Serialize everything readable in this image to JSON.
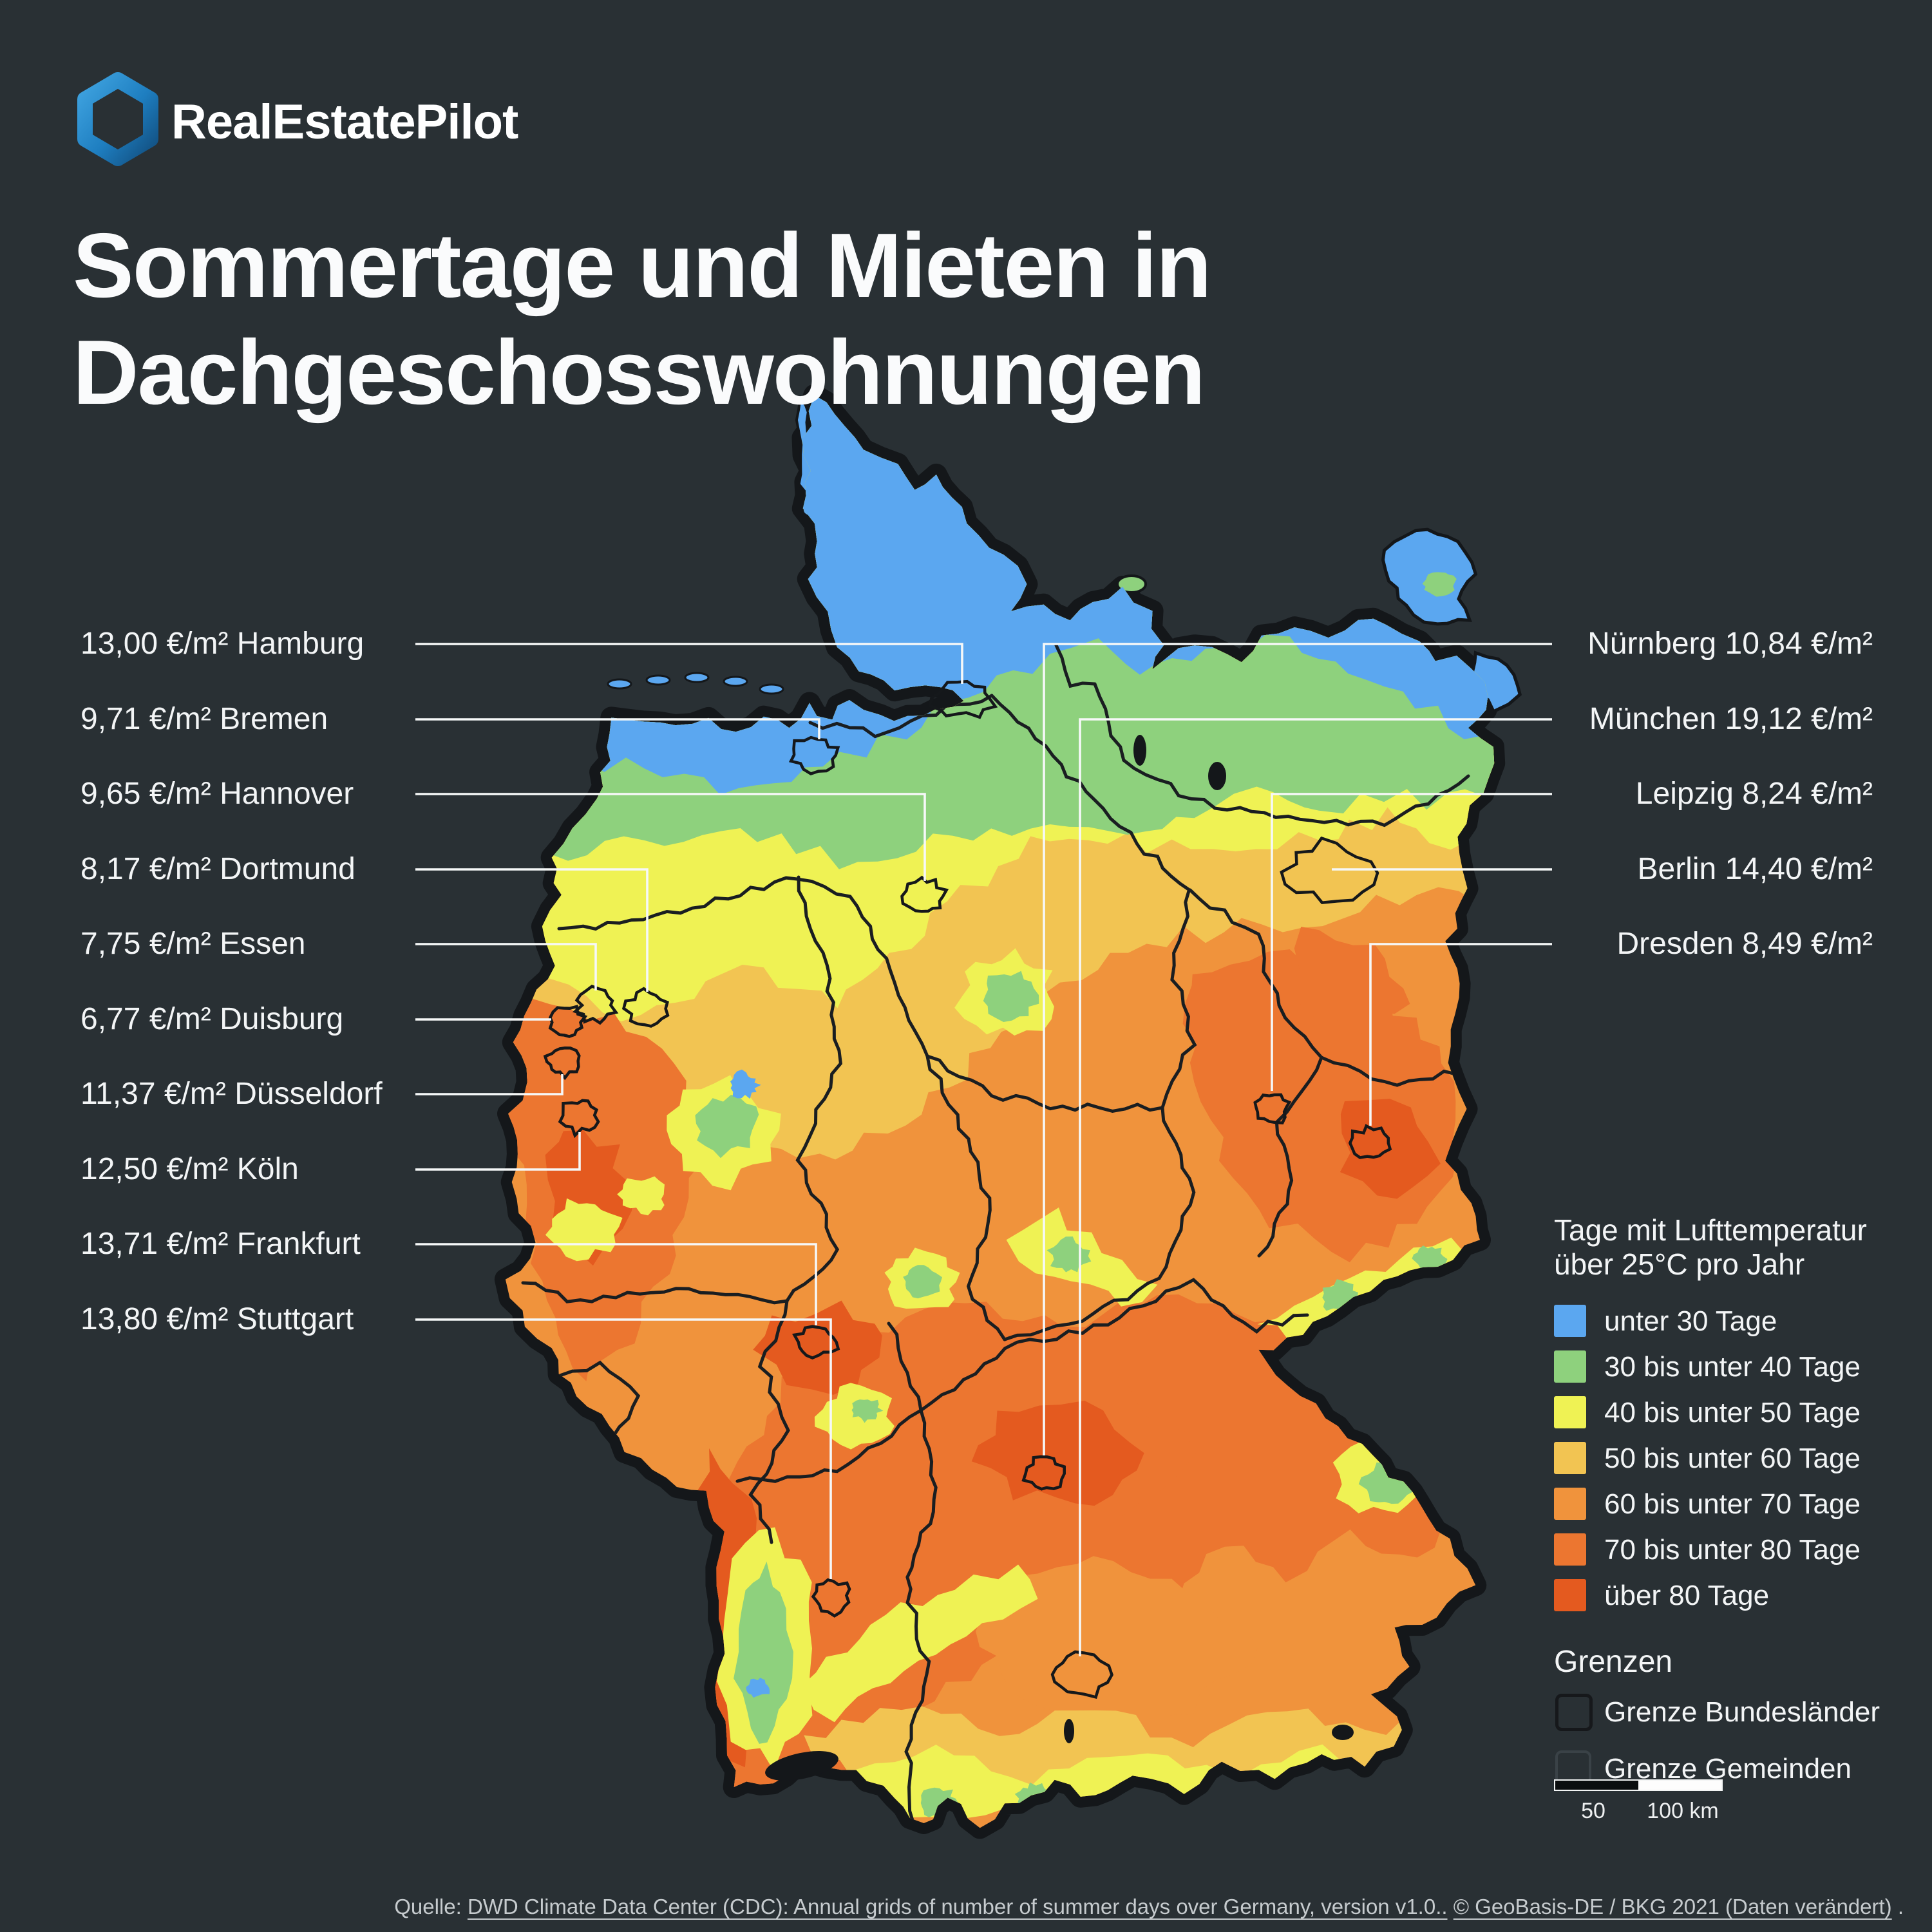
{
  "brand": {
    "name": "RealEstatePilot"
  },
  "title": {
    "line1": "Sommertage und Mieten in",
    "line2": "Dachgeschosswohnungen"
  },
  "cities_left": [
    {
      "name": "Hamburg",
      "price": "13,00",
      "unit": "€/m²",
      "text": "13,00 €/m² Hamburg"
    },
    {
      "name": "Bremen",
      "price": "9,71",
      "unit": "€/m²",
      "text": "9,71 €/m² Bremen"
    },
    {
      "name": "Hannover",
      "price": "9,65",
      "unit": "€/m²",
      "text": "9,65 €/m² Hannover"
    },
    {
      "name": "Dortmund",
      "price": "8,17",
      "unit": "€/m²",
      "text": "8,17 €/m² Dortmund"
    },
    {
      "name": "Essen",
      "price": "7,75",
      "unit": "€/m²",
      "text": "7,75 €/m² Essen"
    },
    {
      "name": "Duisburg",
      "price": "6,77",
      "unit": "€/m²",
      "text": "6,77 €/m² Duisburg"
    },
    {
      "name": "Düsseldorf",
      "price": "11,37",
      "unit": "€/m²",
      "text": "11,37 €/m² Düsseldorf"
    },
    {
      "name": "Köln",
      "price": "12,50",
      "unit": "€/m²",
      "text": "12,50 €/m² Köln"
    },
    {
      "name": "Frankfurt",
      "price": "13,71",
      "unit": "€/m²",
      "text": "13,71 €/m² Frankfurt"
    },
    {
      "name": "Stuttgart",
      "price": "13,80",
      "unit": "€/m²",
      "text": "13,80 €/m² Stuttgart"
    }
  ],
  "cities_right": [
    {
      "name": "Nürnberg",
      "price": "10,84",
      "unit": "€/m²",
      "text": "Nürnberg 10,84 €/m²"
    },
    {
      "name": "München",
      "price": "19,12",
      "unit": "€/m²",
      "text": "München 19,12 €/m²"
    },
    {
      "name": "Leipzig",
      "price": "8,24",
      "unit": "€/m²",
      "text": "Leipzig 8,24 €/m²"
    },
    {
      "name": "Berlin",
      "price": "14,40",
      "unit": "€/m²",
      "text": "Berlin 14,40 €/m²"
    },
    {
      "name": "Dresden",
      "price": "8,49",
      "unit": "€/m²",
      "text": "Dresden 8,49 €/m²"
    }
  ],
  "legend": {
    "title_line1": "Tage mit Lufttemperatur",
    "title_line2": "über 25°C pro Jahr",
    "items": [
      {
        "label": "unter 30 Tage",
        "color": "#5ba7f0"
      },
      {
        "label": "30 bis unter 40 Tage",
        "color": "#8ed17d"
      },
      {
        "label": "40 bis unter 50 Tage",
        "color": "#eff254"
      },
      {
        "label": "50 bis unter 60 Tage",
        "color": "#f2c452"
      },
      {
        "label": "60 bis unter 70 Tage",
        "color": "#f0933c"
      },
      {
        "label": "70 bis unter 80 Tage",
        "color": "#ec7630"
      },
      {
        "label": "über 80 Tage",
        "color": "#e45a1f"
      }
    ]
  },
  "borders_legend": {
    "heading": "Grenzen",
    "items": [
      {
        "label": "Grenze Bundesländer"
      },
      {
        "label": "Grenze Gemeinden"
      }
    ]
  },
  "scale_bar": {
    "mid_label": "50",
    "end_label": "100 km"
  },
  "source": {
    "prefix": "Quelle: ",
    "link1": "DWD Climate Data Center (CDC): Annual grids of number of summer days over Germany, version v1.0..",
    "separator": " ",
    "link2": "© GeoBasis-DE / BKG 2021 (Daten verändert)",
    "suffix": " ."
  },
  "map": {
    "background": "#293034",
    "sea_silhouette": "#14171a",
    "state_border_color": "#1a1e21",
    "leader_line_color": "#f6f8f8"
  }
}
